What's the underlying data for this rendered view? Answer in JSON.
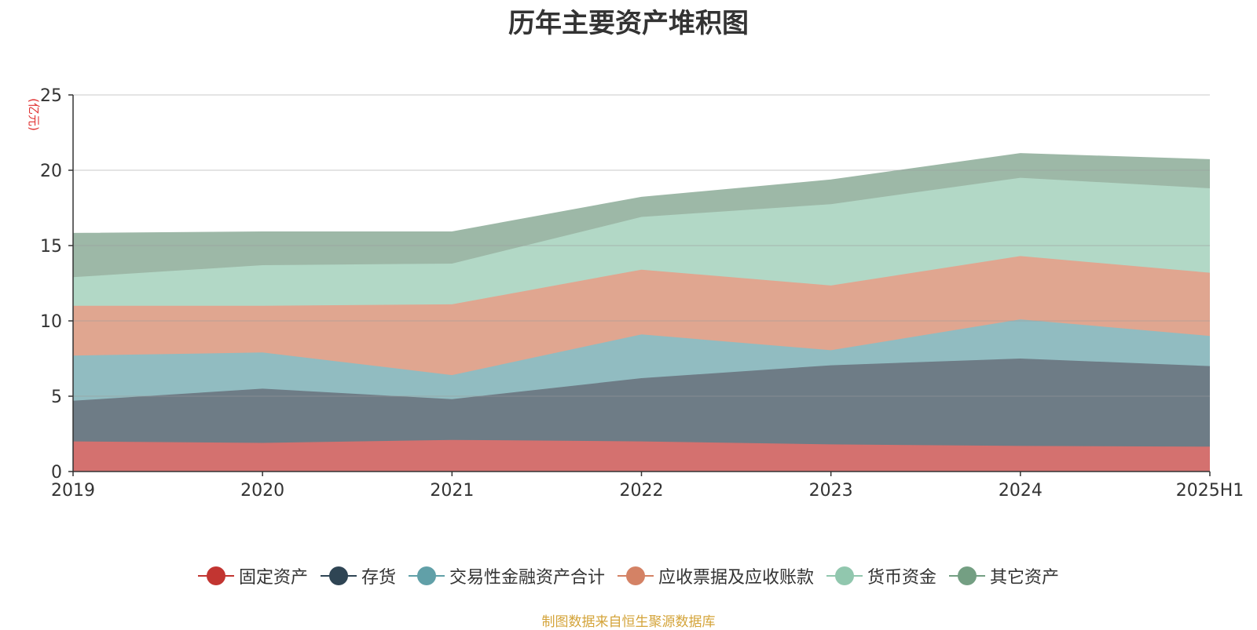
{
  "chart_data": {
    "type": "area",
    "stacked": true,
    "title": "历年主要资产堆积图",
    "ylabel": "(亿元)",
    "ylim": [
      0,
      25
    ],
    "yticks": [
      0,
      5,
      10,
      15,
      20,
      25
    ],
    "grid": true,
    "legend_position": "bottom",
    "x": [
      "2019",
      "2020",
      "2021",
      "2022",
      "2023",
      "2024",
      "2025H1"
    ],
    "series": [
      {
        "name": "固定资产",
        "color": "#c23531",
        "fill": "#d4716f",
        "values": [
          2.0,
          1.9,
          2.1,
          2.0,
          1.8,
          1.7,
          1.65
        ]
      },
      {
        "name": "存货",
        "color": "#2f4554",
        "fill": "#6e7c86",
        "values": [
          2.7,
          3.6,
          2.7,
          4.2,
          5.25,
          5.8,
          5.35
        ]
      },
      {
        "name": "交易性金融资产合计",
        "color": "#61a0a8",
        "fill": "#91bcc1",
        "values": [
          3.0,
          2.4,
          1.6,
          2.9,
          1.0,
          2.6,
          2.0
        ]
      },
      {
        "name": "应收票据及应收账款",
        "color": "#d48265",
        "fill": "#e0a690",
        "values": [
          3.3,
          3.1,
          4.7,
          4.3,
          4.3,
          4.2,
          4.2
        ]
      },
      {
        "name": "货币资金",
        "color": "#91c7ae",
        "fill": "#b2d8c6",
        "values": [
          1.9,
          2.7,
          2.7,
          3.5,
          5.4,
          5.2,
          5.6
        ]
      },
      {
        "name": "其它资产",
        "color": "#749f83",
        "fill": "#9db8a7",
        "values": [
          2.9,
          2.2,
          2.1,
          1.3,
          1.6,
          1.6,
          1.9
        ]
      }
    ]
  },
  "footer_note": "制图数据来自恒生聚源数据库"
}
